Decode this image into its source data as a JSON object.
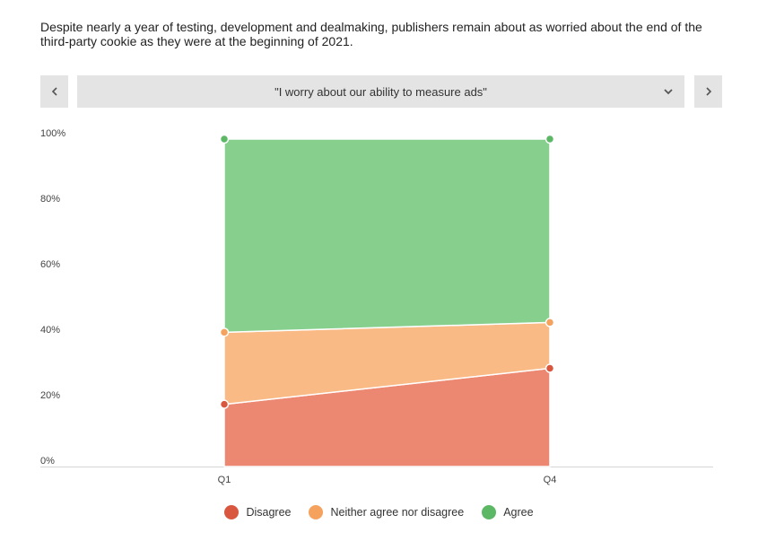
{
  "subtitle": "Despite nearly a year of testing, development and dealmaking, publishers remain about as worried about the end of the third-party cookie as they were at the beginning of 2021.",
  "selector": {
    "selected": "\"I worry about our ability to measure ads\"",
    "prev_icon": "chevron-left-icon",
    "next_icon": "chevron-right-icon",
    "dropdown_icon": "chevron-down-icon"
  },
  "chart_data": {
    "type": "area",
    "stacked": true,
    "x": [
      "Q1",
      "Q4"
    ],
    "ylim": [
      0,
      100
    ],
    "y_ticks": [
      "0%",
      "20%",
      "40%",
      "60%",
      "80%",
      "100%"
    ],
    "grid": false,
    "legend_position": "bottom",
    "series": [
      {
        "name": "Disagree",
        "values": [
          19,
          30
        ],
        "color": "#ec8871",
        "marker_color": "#d9573f"
      },
      {
        "name": "Neither agree nor disagree",
        "values": [
          22,
          14
        ],
        "color": "#f9ba86",
        "marker_color": "#f4a25d"
      },
      {
        "name": "Agree",
        "values": [
          59,
          56
        ],
        "color": "#86cf8d",
        "marker_color": "#5cb865"
      }
    ]
  }
}
